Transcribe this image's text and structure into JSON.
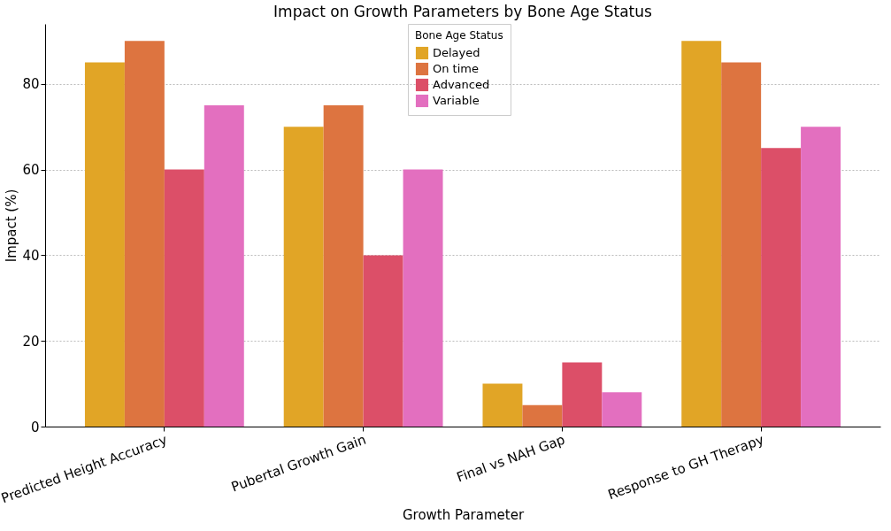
{
  "chart_data": {
    "type": "bar",
    "title": "Impact on Growth Parameters by Bone Age Status",
    "xlabel": "Growth Parameter",
    "ylabel": "Impact (%)",
    "legend_title": "Bone Age Status",
    "categories": [
      "Predicted Height Accuracy",
      "Pubertal Growth Gain",
      "Final vs NAH Gap",
      "Response to GH Therapy"
    ],
    "series": [
      {
        "name": "Delayed",
        "color": "#e1a526",
        "values": [
          85,
          70,
          10,
          90
        ]
      },
      {
        "name": "On time",
        "color": "#dd7440",
        "values": [
          90,
          75,
          5,
          85
        ]
      },
      {
        "name": "Advanced",
        "color": "#dc4f68",
        "values": [
          60,
          40,
          15,
          65
        ]
      },
      {
        "name": "Variable",
        "color": "#e36fbf",
        "values": [
          75,
          60,
          8,
          70
        ]
      }
    ],
    "ylim": [
      0,
      94
    ],
    "yticks": [
      0,
      20,
      40,
      60,
      80
    ],
    "grid": "y",
    "legend": "top"
  }
}
